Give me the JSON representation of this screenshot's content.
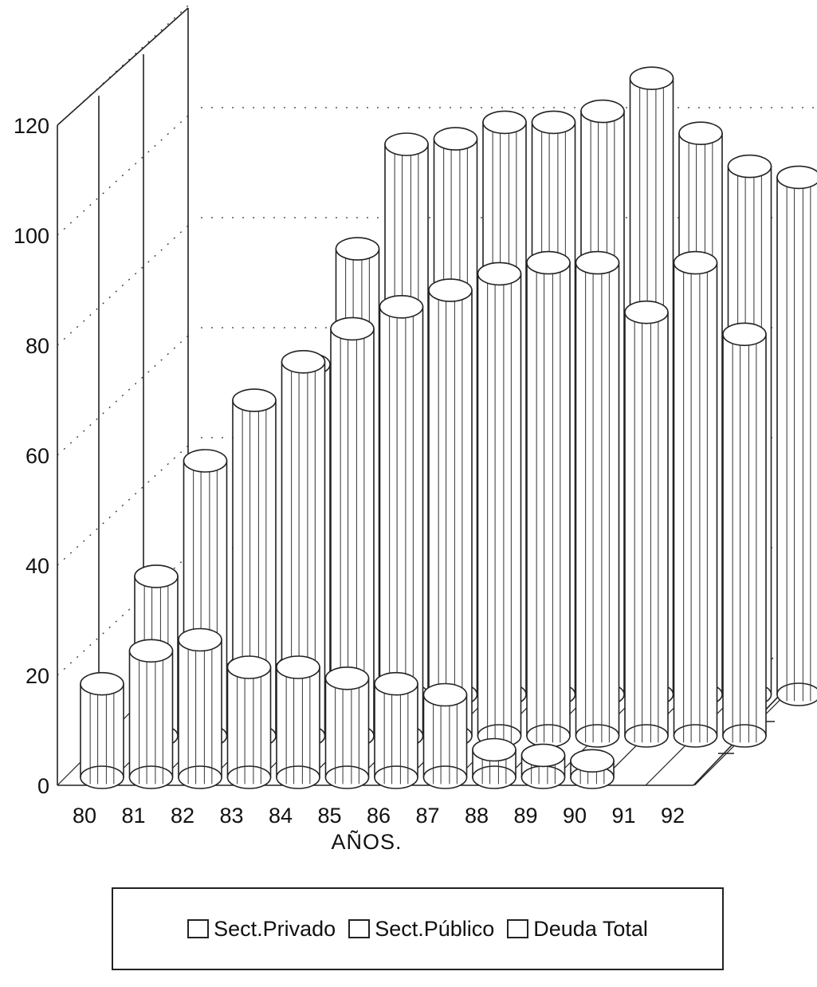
{
  "chart_data": {
    "type": "bar",
    "subtype": "3d-cylinder-depth",
    "title": "",
    "xlabel": "AÑOS.",
    "ylabel": "",
    "ylim": [
      0,
      120
    ],
    "yticks": [
      "0",
      "20",
      "40",
      "60",
      "80",
      "100",
      "120"
    ],
    "categories": [
      "80",
      "81",
      "82",
      "83",
      "84",
      "85",
      "86",
      "87",
      "88",
      "89",
      "90",
      "91",
      "92"
    ],
    "series": [
      {
        "name": "Sect.Privado",
        "values": [
          17,
          23,
          25,
          20,
          20,
          18,
          17,
          15,
          5,
          4,
          3,
          0,
          0
        ]
      },
      {
        "name": "Sect.Público",
        "values": [
          29,
          50,
          61,
          68,
          74,
          78,
          81,
          84,
          86,
          86,
          77,
          86,
          73
        ]
      },
      {
        "name": "Deuda Total",
        "values": [
          0,
          0,
          0,
          0,
          0,
          0,
          0,
          0,
          0,
          0,
          0,
          0,
          0
        ]
      }
    ],
    "extra_back_row": {
      "name": "",
      "values": [
        0,
        0,
        60,
        81,
        100,
        101,
        104,
        104,
        106,
        112,
        102,
        96,
        94
      ]
    },
    "grid": "dotted-horizontal",
    "legend_position": "bottom"
  },
  "legend": {
    "items": [
      {
        "label": "Sect.Privado"
      },
      {
        "label": "Sect.Público"
      },
      {
        "label": "Deuda Total"
      }
    ]
  }
}
